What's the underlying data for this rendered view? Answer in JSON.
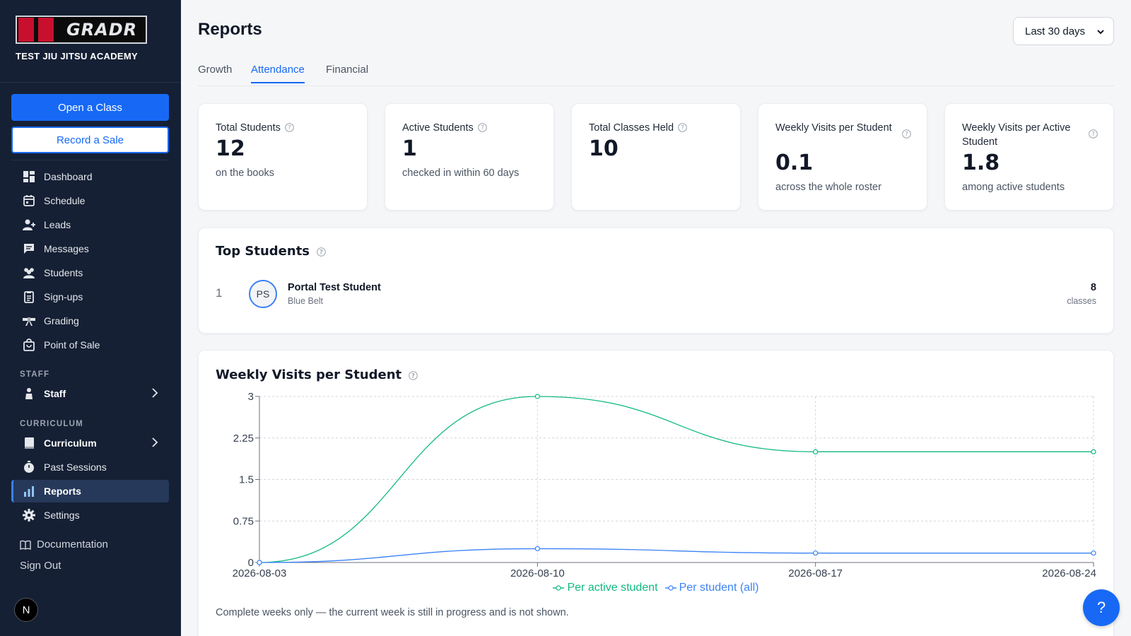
{
  "brand": {
    "logo_text": "GRADR",
    "academy": "TEST JIU JITSU ACADEMY"
  },
  "sidebar": {
    "primary_button": "Open a Class",
    "secondary_button": "Record a Sale",
    "items": [
      {
        "label": "Dashboard",
        "icon": "dashboard-icon"
      },
      {
        "label": "Schedule",
        "icon": "calendar-icon"
      },
      {
        "label": "Leads",
        "icon": "user-plus-icon"
      },
      {
        "label": "Messages",
        "icon": "message-icon"
      },
      {
        "label": "Students",
        "icon": "students-icon"
      },
      {
        "label": "Sign-ups",
        "icon": "clipboard-icon"
      },
      {
        "label": "Grading",
        "icon": "belt-icon"
      },
      {
        "label": "Point of Sale",
        "icon": "shopping-bag-icon"
      }
    ],
    "staff_section": "STAFF",
    "staff_item": "Staff",
    "curriculum_section": "CURRICULUM",
    "curriculum_items": [
      {
        "label": "Curriculum",
        "icon": "book-icon"
      },
      {
        "label": "Past Sessions",
        "icon": "stopwatch-icon"
      },
      {
        "label": "Reports",
        "icon": "bar-chart-icon",
        "active": true
      },
      {
        "label": "Settings",
        "icon": "gear-icon"
      }
    ],
    "documentation": "Documentation",
    "sign_out": "Sign Out",
    "avatar_letter": "N"
  },
  "header": {
    "title": "Reports",
    "range_selected": "Last 30 days"
  },
  "tabs": [
    {
      "label": "Growth"
    },
    {
      "label": "Attendance",
      "active": true
    },
    {
      "label": "Financial"
    }
  ],
  "stats": [
    {
      "label": "Total Students",
      "value": "12",
      "sub": "on the books"
    },
    {
      "label": "Active Students",
      "value": "1",
      "sub": "checked in within 60 days"
    },
    {
      "label": "Total Classes Held",
      "value": "10",
      "sub": ""
    },
    {
      "label": "Weekly Visits per Student",
      "value": "0.1",
      "sub": "across the whole roster"
    },
    {
      "label": "Weekly Visits per Active Student",
      "value": "1.8",
      "sub": "among active students"
    }
  ],
  "top_students": {
    "title": "Top Students",
    "rows": [
      {
        "rank": "1",
        "initials": "PS",
        "name": "Portal Test Student",
        "belt": "Blue Belt",
        "count": "8",
        "unit": "classes"
      }
    ]
  },
  "weekly_chart": {
    "title": "Weekly Visits per Student",
    "footnote": "Complete weeks only — the current week is still in progress and is not shown."
  },
  "chart_data": {
    "type": "line",
    "title": "Weekly Visits per Student",
    "x": [
      "2026-08-03",
      "2026-08-10",
      "2026-08-17",
      "2026-08-24"
    ],
    "series": [
      {
        "name": "Per active student",
        "values": [
          0,
          3,
          2,
          2
        ],
        "color": "#10b981"
      },
      {
        "name": "Per student (all)",
        "values": [
          0,
          0.25,
          0.17,
          0.17
        ],
        "color": "#3b82f6"
      }
    ],
    "yticks": [
      "0",
      "0.75",
      "1.5",
      "2.25",
      "3"
    ],
    "ylim": [
      0,
      3
    ],
    "grid": true,
    "legend": "bottom-center",
    "curve": "smooth"
  },
  "colors": {
    "accent": "#1769f5",
    "sidebar_bg": "#152035",
    "series_active": "#10b981",
    "series_all": "#3b82f6"
  },
  "fab_label": "?"
}
